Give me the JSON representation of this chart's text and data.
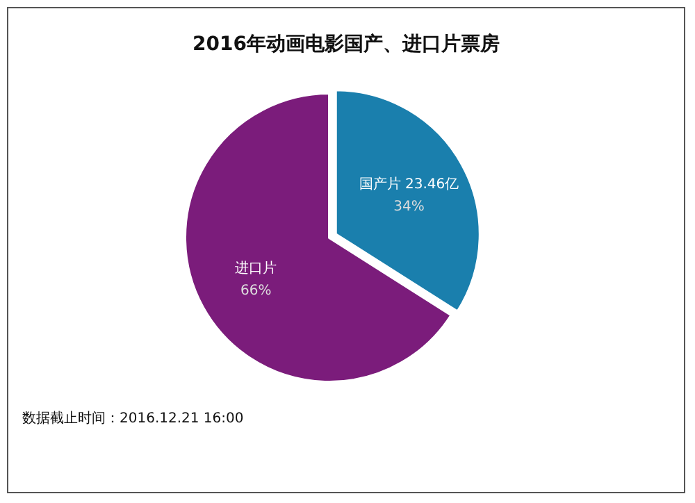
{
  "chart_data": {
    "type": "pie",
    "title": "2016年动画电影国产、进口片票房",
    "categories": [
      "国产片",
      "进口片"
    ],
    "values": [
      34,
      66
    ],
    "colors": [
      "#1a7fad",
      "#7b1c7b"
    ],
    "value_labels": [
      "34%",
      "66%"
    ],
    "annotations": [
      {
        "text": "23.46亿",
        "x": "国产片"
      },
      "数据截止时间：2016.12.21  16:00"
    ]
  }
}
